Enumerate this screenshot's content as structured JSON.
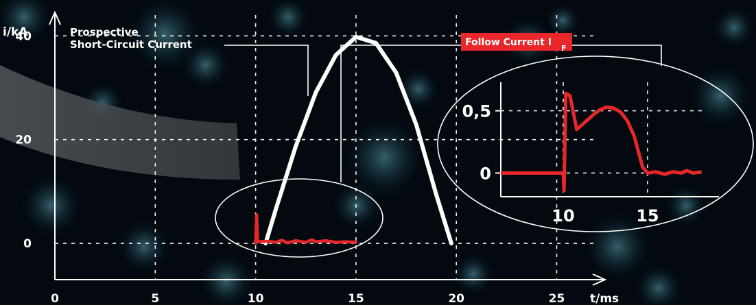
{
  "chart_data": [
    {
      "type": "line",
      "xlabel": "t/ms",
      "ylabel": "i/kA",
      "xlim": [
        0,
        27
      ],
      "ylim": [
        -7,
        44
      ],
      "xticks": [
        "0",
        "5",
        "10",
        "15",
        "20",
        "25"
      ],
      "yticks": [
        "0",
        "20",
        "40"
      ],
      "grid": true,
      "annotations": [
        "Prospective",
        "Short-Circuit Current"
      ],
      "series": [
        {
          "color": "#ffffff",
          "x": [
            10.5,
            11,
            12,
            13,
            14,
            15,
            16,
            17,
            18,
            19,
            19.75
          ],
          "y": [
            0,
            6.5,
            18.7,
            29.1,
            36.3,
            39.8,
            38.6,
            32.9,
            22.9,
            9.4,
            0
          ]
        },
        {
          "color": "#e8272b",
          "x": [
            10,
            10.05,
            10.1,
            10.6,
            11,
            11.3,
            11.6,
            12,
            12.5,
            12.8,
            13,
            13.5,
            14,
            14.5,
            15
          ],
          "y": [
            0,
            5.5,
            0.3,
            0.4,
            0.2,
            0.6,
            0.1,
            0.5,
            0.2,
            0.7,
            0.3,
            0.5,
            0.2,
            0.3,
            0.2
          ]
        }
      ]
    },
    {
      "type": "line",
      "xlim": [
        6.3,
        18.5
      ],
      "ylim": [
        -0.19,
        0.74
      ],
      "xticks": [
        "10",
        "15"
      ],
      "yticks": [
        "0",
        "0,5"
      ],
      "grid": true,
      "series": [
        {
          "name": "Follow Current I F",
          "color": "#e8272b",
          "x": [
            6.3,
            10,
            10.05,
            10.15,
            10.4,
            10.8,
            11.3,
            11.8,
            12.2,
            12.6,
            13,
            13.4,
            13.8,
            14.2,
            14.7,
            15,
            15.5,
            16,
            16.5,
            17,
            17.3,
            17.7,
            18.2
          ],
          "y": [
            0,
            0,
            -0.14,
            0.64,
            0.62,
            0.35,
            0.41,
            0.47,
            0.51,
            0.53,
            0.52,
            0.49,
            0.42,
            0.3,
            0.05,
            0.0,
            0.01,
            -0.01,
            0.01,
            0.0,
            0.02,
            0.0,
            0.01
          ]
        }
      ]
    }
  ],
  "labels": {
    "prospective_line1": "Prospective",
    "prospective_line2": "Short-Circuit Current",
    "follow_current": "Follow Current I",
    "follow_current_sub": "F"
  }
}
